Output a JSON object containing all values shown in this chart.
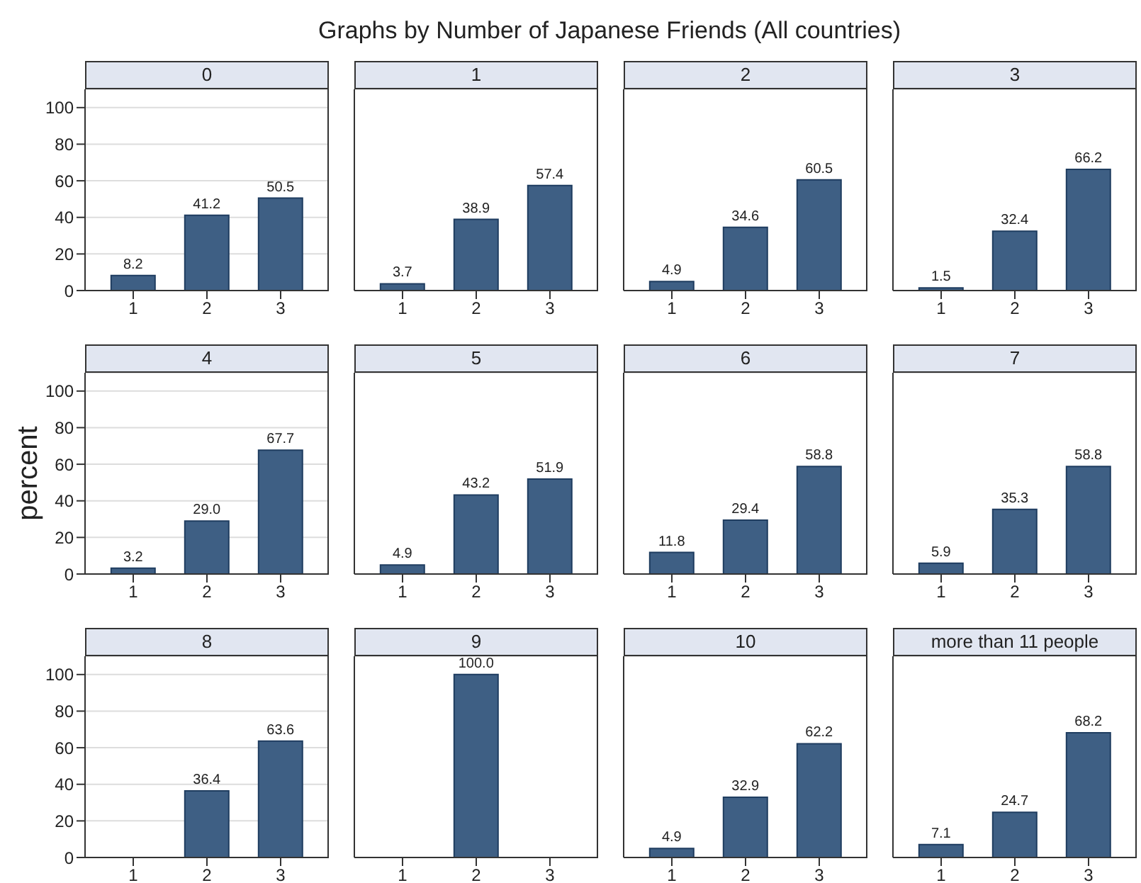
{
  "chart_data": [
    {
      "type": "bar",
      "title": "0",
      "annotations": [
        "Graphs by Number of Japanese Friends (All countries)"
      ],
      "categories": [
        "1",
        "2",
        "3"
      ],
      "values": [
        8.2,
        41.2,
        50.5
      ],
      "value_labels": [
        "8.2",
        "41.2",
        "50.5"
      ],
      "color": "#3e5f84",
      "ylim": [
        0,
        110
      ],
      "yticks": [
        0,
        20,
        40,
        60,
        80,
        100
      ],
      "grid": "y"
    },
    {
      "type": "bar",
      "title": "1",
      "categories": [
        "1",
        "2",
        "3"
      ],
      "values": [
        3.7,
        38.9,
        57.4
      ],
      "value_labels": [
        "3.7",
        "38.9",
        "57.4"
      ],
      "color": "#3e5f84",
      "ylim": [
        0,
        110
      ],
      "yticks": [
        0,
        20,
        40,
        60,
        80,
        100
      ],
      "grid": "y",
      "tick_labels": "x"
    },
    {
      "type": "bar",
      "title": "2",
      "categories": [
        "1",
        "2",
        "3"
      ],
      "values": [
        4.9,
        34.6,
        60.5
      ],
      "value_labels": [
        "4.9",
        "34.6",
        "60.5"
      ],
      "color": "#3e5f84",
      "ylim": [
        0,
        110
      ],
      "yticks": [
        0,
        20,
        40,
        60,
        80,
        100
      ],
      "grid": "y",
      "tick_labels": "x"
    },
    {
      "type": "bar",
      "title": "3",
      "categories": [
        "1",
        "2",
        "3"
      ],
      "values": [
        1.5,
        32.4,
        66.2
      ],
      "value_labels": [
        "1.5",
        "32.4",
        "66.2"
      ],
      "color": "#3e5f84",
      "ylim": [
        0,
        110
      ],
      "yticks": [
        0,
        20,
        40,
        60,
        80,
        100
      ],
      "grid": "y",
      "tick_labels": "x"
    },
    {
      "type": "bar",
      "title": "4",
      "ylabel": "percent",
      "categories": [
        "1",
        "2",
        "3"
      ],
      "values": [
        3.2,
        29.0,
        67.7
      ],
      "value_labels": [
        "3.2",
        "29.0",
        "67.7"
      ],
      "color": "#3e5f84",
      "ylim": [
        0,
        110
      ],
      "yticks": [
        0,
        20,
        40,
        60,
        80,
        100
      ],
      "grid": "y"
    },
    {
      "type": "bar",
      "title": "5",
      "categories": [
        "1",
        "2",
        "3"
      ],
      "values": [
        4.9,
        43.2,
        51.9
      ],
      "value_labels": [
        "4.9",
        "43.2",
        "51.9"
      ],
      "color": "#3e5f84",
      "ylim": [
        0,
        110
      ],
      "yticks": [
        0,
        20,
        40,
        60,
        80,
        100
      ],
      "grid": "y",
      "tick_labels": "x"
    },
    {
      "type": "bar",
      "title": "6",
      "categories": [
        "1",
        "2",
        "3"
      ],
      "values": [
        11.8,
        29.4,
        58.8
      ],
      "value_labels": [
        "11.8",
        "29.4",
        "58.8"
      ],
      "color": "#3e5f84",
      "ylim": [
        0,
        110
      ],
      "yticks": [
        0,
        20,
        40,
        60,
        80,
        100
      ],
      "grid": "y",
      "tick_labels": "x"
    },
    {
      "type": "bar",
      "title": "7",
      "categories": [
        "1",
        "2",
        "3"
      ],
      "values": [
        5.9,
        35.3,
        58.8
      ],
      "value_labels": [
        "5.9",
        "35.3",
        "58.8"
      ],
      "color": "#3e5f84",
      "ylim": [
        0,
        110
      ],
      "yticks": [
        0,
        20,
        40,
        60,
        80,
        100
      ],
      "grid": "y",
      "tick_labels": "x"
    },
    {
      "type": "bar",
      "title": "8",
      "categories": [
        "1",
        "2",
        "3"
      ],
      "values": [
        null,
        36.4,
        63.6
      ],
      "value_labels": [
        null,
        "36.4",
        "63.6"
      ],
      "color": "#3e5f84",
      "ylim": [
        0,
        110
      ],
      "yticks": [
        0,
        20,
        40,
        60,
        80,
        100
      ],
      "grid": "y"
    },
    {
      "type": "bar",
      "title": "9",
      "categories": [
        "1",
        "2",
        "3"
      ],
      "values": [
        null,
        100.0,
        null
      ],
      "value_labels": [
        null,
        "100.0",
        null
      ],
      "color": "#3e5f84",
      "ylim": [
        0,
        110
      ],
      "yticks": [
        0,
        20,
        40,
        60,
        80,
        100
      ],
      "grid": "y",
      "tick_labels": "x"
    },
    {
      "type": "bar",
      "title": "10",
      "categories": [
        "1",
        "2",
        "3"
      ],
      "values": [
        4.9,
        32.9,
        62.2
      ],
      "value_labels": [
        "4.9",
        "32.9",
        "62.2"
      ],
      "color": "#3e5f84",
      "ylim": [
        0,
        110
      ],
      "yticks": [
        0,
        20,
        40,
        60,
        80,
        100
      ],
      "grid": "y",
      "tick_labels": "x"
    },
    {
      "type": "bar",
      "title": "more than 11 people",
      "categories": [
        "1",
        "2",
        "3"
      ],
      "values": [
        7.1,
        24.7,
        68.2
      ],
      "value_labels": [
        "7.1",
        "24.7",
        "68.2"
      ],
      "color": "#3e5f84",
      "ylim": [
        0,
        110
      ],
      "yticks": [
        0,
        20,
        40,
        60,
        80,
        100
      ],
      "grid": "y",
      "tick_labels": "x"
    }
  ]
}
